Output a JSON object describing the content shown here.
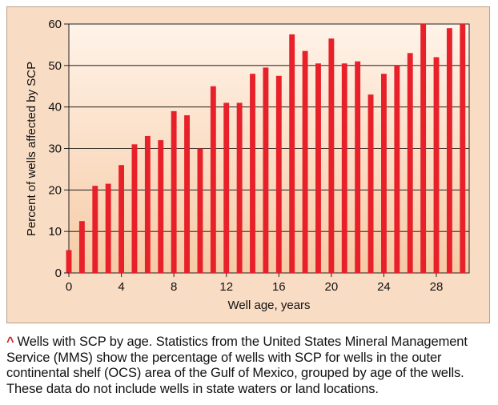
{
  "chart_data": {
    "type": "bar",
    "title": "",
    "xlabel": "Well age, years",
    "ylabel": "Percent of wells affected by SCP",
    "x": [
      0,
      1,
      2,
      3,
      4,
      5,
      6,
      7,
      8,
      9,
      10,
      11,
      12,
      13,
      14,
      15,
      16,
      17,
      18,
      19,
      20,
      21,
      22,
      23,
      24,
      25,
      26,
      27,
      28,
      29,
      30
    ],
    "values": [
      5.5,
      12.5,
      21,
      21.5,
      26,
      31,
      33,
      32,
      39,
      38,
      30,
      45,
      41,
      41,
      48,
      49.5,
      47.5,
      57.5,
      53.5,
      50.5,
      56.5,
      50.5,
      51,
      43,
      48,
      50,
      53,
      60,
      52,
      59,
      60
    ],
    "xlim": [
      0,
      30.5
    ],
    "ylim": [
      0,
      60
    ],
    "xticks": [
      0,
      4,
      8,
      12,
      16,
      20,
      24,
      28
    ],
    "yticks": [
      0,
      10,
      20,
      30,
      40,
      50,
      60
    ],
    "grid": true,
    "colors": {
      "bar": "#e8202a",
      "panel": "#f9dcc4",
      "plot_top": "#fff3e8",
      "plot_bottom": "#f6cba6",
      "gridline": "#000000"
    }
  },
  "caption": {
    "marker": "^",
    "text": "Wells with SCP by age. Statistics from the United States Mineral Management Service (MMS) show the percentage of wells with SCP for wells in the outer continental shelf (OCS) area of the Gulf of Mexico, grouped by age of the wells. These data do not include wells in state waters or land locations."
  }
}
